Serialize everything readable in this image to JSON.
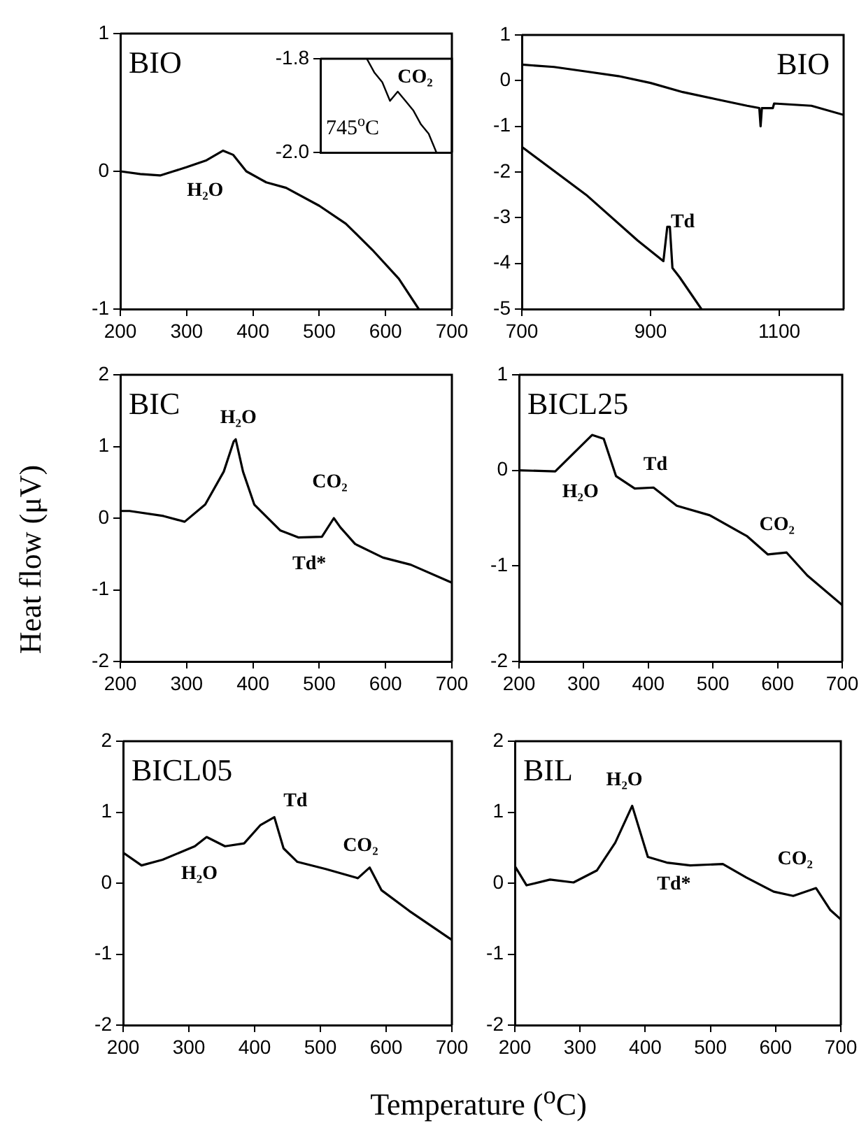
{
  "chart_data": [
    {
      "type": "line",
      "title": "BIO",
      "xlim": [
        200,
        700
      ],
      "xticks": [
        200,
        300,
        400,
        500,
        600,
        700
      ],
      "ylim": [
        -1,
        1
      ],
      "yticks": [
        -1,
        0,
        1
      ],
      "marker": "none",
      "line_style": "solid",
      "annotations": [
        "H₂O"
      ],
      "series": [
        {
          "color": "#000000",
          "x": [
            200,
            230,
            260,
            280,
            300,
            330,
            355,
            370,
            390,
            420,
            450,
            500,
            540,
            580,
            620,
            650
          ],
          "values": [
            0,
            -0.02,
            -0.03,
            0,
            0.03,
            0.08,
            0.15,
            0.12,
            0,
            -0.08,
            -0.12,
            -0.25,
            -0.38,
            -0.57,
            -0.78,
            -1
          ]
        }
      ]
    },
    {
      "type": "line",
      "categories": [
        null,
        null,
        null,
        null,
        null,
        null,
        null,
        null,
        null,
        null,
        null,
        null,
        null,
        null,
        null,
        null,
        null,
        null
      ],
      "ylim": [
        -2,
        -1.8
      ],
      "yticks": [
        {
          "value": -2,
          "label": "-2.0"
        },
        -1.8
      ],
      "tick_labels": "y",
      "marker": "none",
      "line_style": "solid",
      "annotations": [
        "CO₂",
        "745$^{o}$C"
      ],
      "series": [
        {
          "color": "#000000",
          "values": [
            null,
            null,
            null,
            null,
            null,
            null,
            -1.8,
            -1.83,
            -1.85,
            -1.89,
            -1.87,
            -1.89,
            -1.91,
            -1.94,
            -1.96,
            -2,
            null,
            null
          ]
        }
      ]
    },
    {
      "type": "line",
      "title": "BIO",
      "xlim": [
        700,
        1200
      ],
      "xticks": [
        700,
        900,
        1100
      ],
      "ylim": [
        -5,
        1
      ],
      "yticks": [
        -5,
        -4,
        -3,
        -2,
        -1,
        0,
        1
      ],
      "marker": "none",
      "line_style": "solid",
      "annotations": [
        "Td"
      ],
      "series": [
        {
          "color": "#000000",
          "x": [
            700,
            750,
            800,
            850,
            900,
            950,
            1000,
            1050,
            1069,
            1071,
            1073,
            1090,
            1092,
            1150,
            1200
          ],
          "values": [
            0.35,
            0.3,
            0.2,
            0.1,
            -0.05,
            -0.25,
            -0.4,
            -0.55,
            -0.6,
            -1,
            -0.6,
            -0.6,
            -0.5,
            -0.55,
            -0.75
          ]
        },
        {
          "color": "#000000",
          "x": [
            700,
            800,
            880,
            920,
            926,
            930,
            934,
            945,
            979
          ],
          "values": [
            -1.45,
            -2.5,
            -3.5,
            -3.95,
            -3.2,
            -3.2,
            -4.1,
            -4.3,
            -5
          ]
        }
      ]
    },
    {
      "type": "line",
      "title": "BIC",
      "ylabel": "Heat flow (μV)",
      "xlim": [
        200,
        700
      ],
      "xticks": [
        200,
        300,
        400,
        500,
        600,
        700
      ],
      "ylim": [
        -2,
        2
      ],
      "yticks": [
        -2,
        -1,
        0,
        1,
        2
      ],
      "marker": "none",
      "line_style": "solid",
      "annotations": [
        "H₂O",
        "CO₂",
        "Td*"
      ],
      "series": [
        {
          "color": "#000000",
          "x": [
            200,
            214,
            265,
            297,
            328,
            356,
            371,
            374,
            385,
            402,
            441,
            469,
            504,
            522,
            532,
            554,
            596,
            638,
            695,
            700
          ],
          "values": [
            0.1,
            0.1,
            0.03,
            -0.05,
            0.19,
            0.65,
            1.07,
            1.1,
            0.65,
            0.19,
            -0.17,
            -0.27,
            -0.26,
            0,
            -0.13,
            -0.36,
            -0.55,
            -0.65,
            -0.88,
            -0.9
          ]
        }
      ]
    },
    {
      "type": "line",
      "title": "BICL25",
      "xlim": [
        200,
        700
      ],
      "xticks": [
        200,
        300,
        400,
        500,
        600,
        700
      ],
      "ylim": [
        -2,
        1
      ],
      "yticks": [
        -2,
        -1,
        0,
        1
      ],
      "marker": "none",
      "line_style": "solid",
      "annotations": [
        "H₂O",
        "Td",
        "CO₂"
      ],
      "series": [
        {
          "color": "#000000",
          "x": [
            200,
            256,
            313,
            331,
            350,
            379,
            408,
            444,
            495,
            553,
            585,
            614,
            646,
            700
          ],
          "values": [
            0,
            -0.01,
            0.37,
            0.33,
            -0.06,
            -0.19,
            -0.18,
            -0.37,
            -0.47,
            -0.69,
            -0.88,
            -0.86,
            -1.1,
            -1.41
          ]
        }
      ]
    },
    {
      "type": "line",
      "title": "BICL05",
      "xlim": [
        200,
        700
      ],
      "xticks": [
        200,
        300,
        400,
        500,
        600,
        700
      ],
      "ylim": [
        -2,
        2
      ],
      "yticks": [
        -2,
        -1,
        0,
        1,
        2
      ],
      "marker": "none",
      "line_style": "solid",
      "annotations": [
        "H₂O",
        "Td",
        "CO₂"
      ],
      "series": [
        {
          "color": "#000000",
          "x": [
            200,
            228,
            260,
            309,
            327,
            355,
            384,
            409,
            430,
            444,
            465,
            508,
            557,
            575,
            593,
            635,
            692,
            700
          ],
          "values": [
            0.43,
            0.25,
            0.33,
            0.52,
            0.65,
            0.52,
            0.56,
            0.82,
            0.93,
            0.49,
            0.3,
            0.2,
            0.07,
            0.22,
            -0.1,
            -0.39,
            -0.75,
            -0.8
          ]
        }
      ]
    },
    {
      "type": "line",
      "title": "BIL",
      "xlabel": "Temperature ($^{o}$C)",
      "xlim": [
        200,
        700
      ],
      "xticks": [
        200,
        300,
        400,
        500,
        600,
        700
      ],
      "ylim": [
        -2,
        2
      ],
      "yticks": [
        -2,
        -1,
        0,
        1,
        2
      ],
      "marker": "none",
      "line_style": "solid",
      "annotations": [
        "H₂O",
        "Td*",
        "CO₂"
      ],
      "series": [
        {
          "color": "#000000",
          "x": [
            200,
            218,
            254,
            290,
            326,
            354,
            380,
            404,
            433,
            469,
            519,
            555,
            597,
            627,
            662,
            684,
            700
          ],
          "values": [
            0.24,
            -0.03,
            0.05,
            0.01,
            0.18,
            0.57,
            1.09,
            0.37,
            0.29,
            0.25,
            0.27,
            0.08,
            -0.12,
            -0.18,
            -0.07,
            -0.38,
            -0.51
          ]
        }
      ]
    }
  ]
}
